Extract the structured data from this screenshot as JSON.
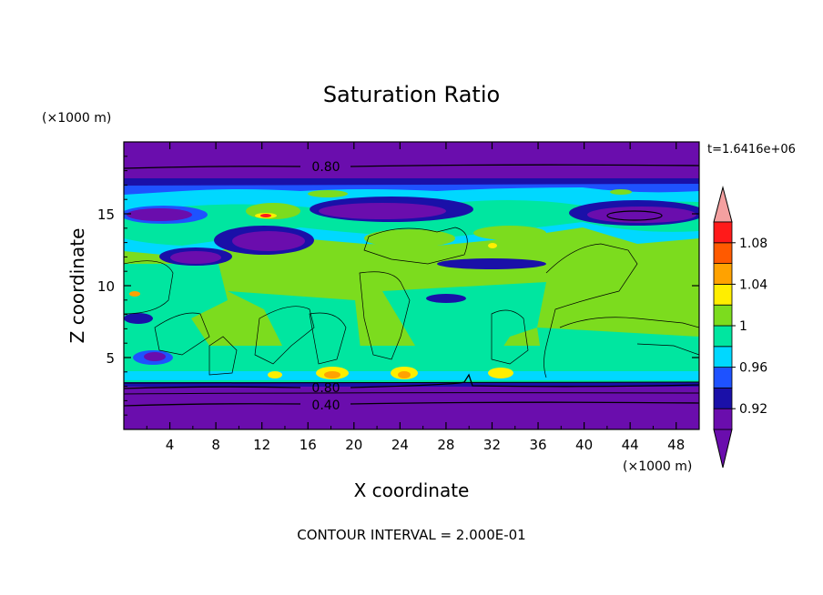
{
  "chart_data": {
    "type": "contour",
    "title": "Saturation Ratio",
    "xlabel": "X coordinate",
    "ylabel": "Z coordinate",
    "x_unit": "(×1000 m)",
    "y_unit": "(×1000 m)",
    "xlim": [
      0,
      50
    ],
    "ylim": [
      0,
      20
    ],
    "x_ticks": [
      4,
      8,
      12,
      16,
      20,
      24,
      28,
      32,
      36,
      40,
      44,
      48
    ],
    "y_ticks": [
      5,
      10,
      15
    ],
    "time_label": "t=1.6416e+06",
    "footer": "CONTOUR INTERVAL = 2.000E-01",
    "colorbar": {
      "levels": [
        0.9,
        0.92,
        0.94,
        0.96,
        0.98,
        1.0,
        1.02,
        1.04,
        1.06,
        1.08,
        1.1
      ],
      "tick_labels": [
        "0.92",
        "0.96",
        "1",
        "1.04",
        "1.08"
      ],
      "colors": [
        "#6a0dad",
        "#1a10a8",
        "#1e52ff",
        "#00d8ff",
        "#00e6a0",
        "#7cdc1e",
        "#ffee00",
        "#ffa200",
        "#ff5a00",
        "#ff1a1a",
        "#f4a0a0"
      ],
      "extend": "both"
    },
    "contour_labels": [
      {
        "value": "0.80",
        "x": 21.5,
        "z": 18.6
      },
      {
        "value": "0.80",
        "x": 16.8,
        "z": 2.96
      },
      {
        "value": "0.40",
        "x": 16.8,
        "z": 1.6
      }
    ]
  }
}
